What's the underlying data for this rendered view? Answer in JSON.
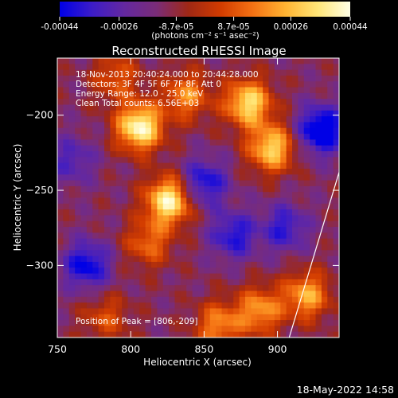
{
  "colorbar": {
    "tick_labels": [
      "-0.00044",
      "-0.00026",
      "-8.7e-05",
      "8.7e-05",
      "0.00026",
      "0.00044"
    ],
    "tick_values": [
      -0.00044,
      -0.00026,
      -8.7e-05,
      8.7e-05,
      0.00026,
      0.00044
    ],
    "range": [
      -0.00044,
      0.00044
    ],
    "unit_label": "(photons cm⁻² s⁻¹ asec⁻²)",
    "colors": [
      "#0000e6",
      "#3c1cc8",
      "#6428a0",
      "#7a2c78",
      "#a02814",
      "#d23c00",
      "#f57314",
      "#ffb432",
      "#ffe678",
      "#ffffe6"
    ]
  },
  "chart_data": {
    "type": "heatmap",
    "title": "Reconstructed RHESSI Image",
    "xlabel": "Heliocentric X (arcsec)",
    "ylabel": "Heliocentric Y (arcsec)",
    "xlim": [
      750,
      942
    ],
    "ylim": [
      -348,
      -162
    ],
    "x_ticks": [
      750,
      800,
      850,
      900
    ],
    "y_ticks": [
      -200,
      -250,
      -300
    ],
    "info_lines": [
      "18-Nov-2013 20:40:24.000 to 20:44:28.000",
      "Detectors: 3F 4F 5F 6F 7F 8F, Att 0",
      "Energy Range: 12.0 - 25.0 keV",
      "Clean     Total counts: 6.56E+03"
    ],
    "peak_label": "Position of Peak = [806,-209]",
    "peak": [
      806,
      -209
    ],
    "limb_line": [
      [
        908,
        -348
      ],
      [
        942,
        -238
      ]
    ],
    "blobs": [
      {
        "x": 806,
        "y": -208,
        "amp": 1.0
      },
      {
        "x": 826,
        "y": -257,
        "amp": 0.95
      },
      {
        "x": 880,
        "y": -192,
        "amp": 0.85
      },
      {
        "x": 896,
        "y": -222,
        "amp": 0.8
      },
      {
        "x": 838,
        "y": -187,
        "amp": 0.55
      },
      {
        "x": 812,
        "y": -285,
        "amp": 0.45
      },
      {
        "x": 790,
        "y": -175,
        "amp": 0.4
      },
      {
        "x": 920,
        "y": -320,
        "amp": 0.65
      },
      {
        "x": 888,
        "y": -330,
        "amp": 0.6
      },
      {
        "x": 860,
        "y": -340,
        "amp": 0.55
      },
      {
        "x": 783,
        "y": -335,
        "amp": 0.35
      },
      {
        "x": 850,
        "y": -245,
        "amp": -0.55
      },
      {
        "x": 770,
        "y": -300,
        "amp": -0.6
      },
      {
        "x": 930,
        "y": -210,
        "amp": -0.8
      },
      {
        "x": 870,
        "y": -280,
        "amp": -0.5
      },
      {
        "x": 760,
        "y": -230,
        "amp": -0.35
      },
      {
        "x": 905,
        "y": -275,
        "amp": -0.45
      }
    ]
  },
  "footer": {
    "date": "18-May-2022 14:58"
  }
}
